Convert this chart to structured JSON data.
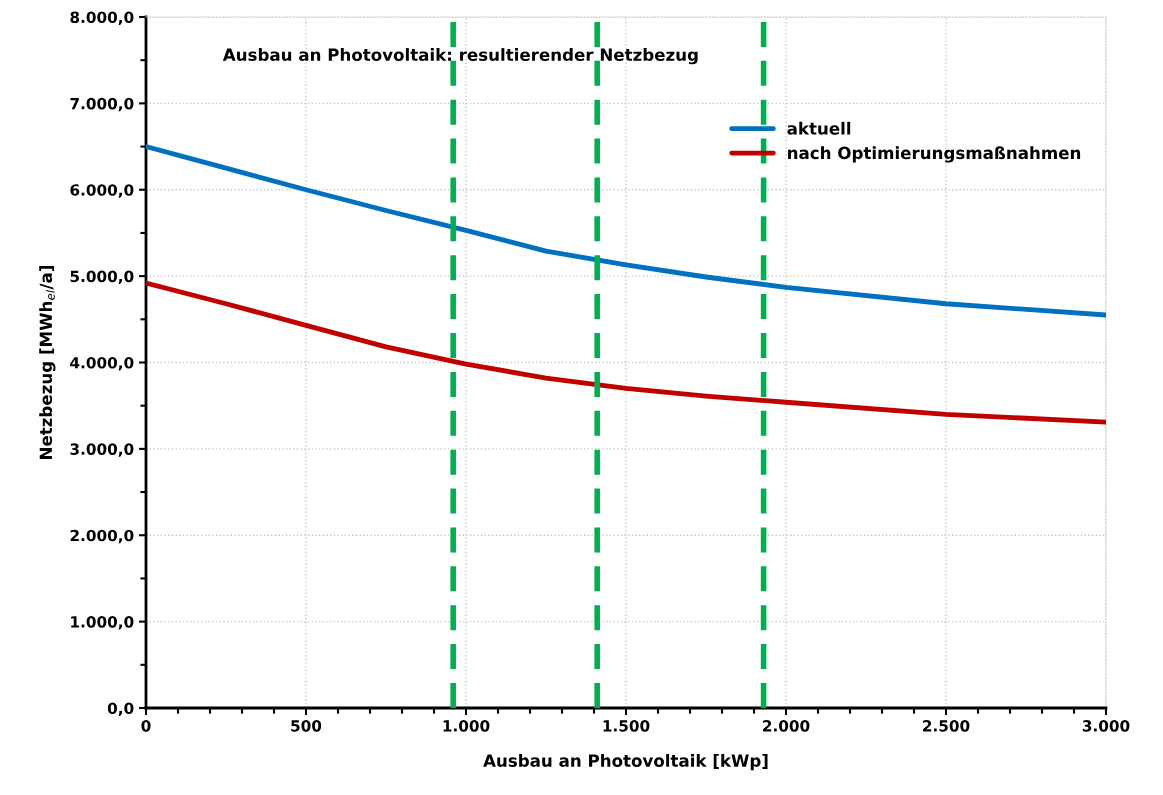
{
  "chart_data": {
    "type": "line",
    "title": "Ausbau an Photovoltaik: resultierender Netzbezug",
    "xlabel": "Ausbau an Photovoltaik [kWp]",
    "ylabel": "Netzbezug [MWh$_{el}$/a]",
    "x": [
      0,
      250,
      500,
      750,
      1000,
      1250,
      1500,
      1750,
      2000,
      2500,
      3000
    ],
    "series": [
      {
        "name": "aktuell",
        "color": "#0070c0",
        "values": [
          6500,
          6250,
          6000,
          5760,
          5530,
          5290,
          5130,
          4990,
          4870,
          4680,
          4550
        ]
      },
      {
        "name": "nach Optimierungsmaßnahmen",
        "color": "#c00000",
        "values": [
          4920,
          4680,
          4430,
          4180,
          3980,
          3820,
          3700,
          3610,
          3540,
          3400,
          3310
        ]
      }
    ],
    "xlim": [
      0,
      3000
    ],
    "xticks": [
      0,
      500,
      {
        "value": 1000,
        "label": "1.000"
      },
      {
        "value": 1500,
        "label": "1.500"
      },
      {
        "value": 2000,
        "label": "2.000"
      },
      {
        "value": 2500,
        "label": "2.500"
      },
      {
        "value": 3000,
        "label": "3.000"
      }
    ],
    "ylim": [
      0,
      8000
    ],
    "yticks": [
      {
        "value": 0,
        "label": "0,0"
      },
      {
        "value": 1000,
        "label": "1.000,0"
      },
      {
        "value": 2000,
        "label": "2.000,0"
      },
      {
        "value": 3000,
        "label": "3.000,0"
      },
      {
        "value": 4000,
        "label": "4.000,0"
      },
      {
        "value": 5000,
        "label": "5.000,0"
      },
      {
        "value": 6000,
        "label": "6.000,0"
      },
      {
        "value": 7000,
        "label": "7.000,0"
      },
      {
        "value": 8000,
        "label": "8.000,0"
      }
    ],
    "ref_lines": [
      {
        "axis": "x",
        "value": 960,
        "color": "#00b050",
        "line_style": "dashed"
      },
      {
        "axis": "x",
        "value": 1410,
        "color": "#00b050",
        "line_style": "dashed"
      },
      {
        "axis": "x",
        "value": 1930,
        "color": "#00b050",
        "line_style": "dashed"
      }
    ],
    "grid": true,
    "legend": "top right",
    "marker": "none",
    "line_style": "solid"
  }
}
